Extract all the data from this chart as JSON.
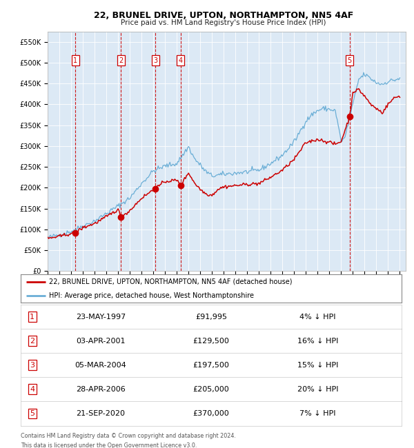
{
  "title": "22, BRUNEL DRIVE, UPTON, NORTHAMPTON, NN5 4AF",
  "subtitle": "Price paid vs. HM Land Registry's House Price Index (HPI)",
  "legend_line1": "22, BRUNEL DRIVE, UPTON, NORTHAMPTON, NN5 4AF (detached house)",
  "legend_line2": "HPI: Average price, detached house, West Northamptonshire",
  "footer1": "Contains HM Land Registry data © Crown copyright and database right 2024.",
  "footer2": "This data is licensed under the Open Government Licence v3.0.",
  "transactions": [
    {
      "num": 1,
      "date": "23-MAY-1997",
      "year": 1997.38,
      "price": 91995,
      "pct": "4%",
      "dir": "↓"
    },
    {
      "num": 2,
      "date": "03-APR-2001",
      "year": 2001.25,
      "price": 129500,
      "pct": "16%",
      "dir": "↓"
    },
    {
      "num": 3,
      "date": "05-MAR-2004",
      "year": 2004.17,
      "price": 197500,
      "pct": "15%",
      "dir": "↓"
    },
    {
      "num": 4,
      "date": "28-APR-2006",
      "year": 2006.33,
      "price": 205000,
      "pct": "20%",
      "dir": "↓"
    },
    {
      "num": 5,
      "date": "21-SEP-2020",
      "year": 2020.72,
      "price": 370000,
      "pct": "7%",
      "dir": "↓"
    }
  ],
  "hpi_color": "#6aaed6",
  "price_color": "#cc0000",
  "dot_color": "#cc0000",
  "vline_color": "#cc0000",
  "box_color": "#cc0000",
  "bg_chart": "#dce9f5",
  "bg_figure": "#ffffff",
  "ylim": [
    0,
    575000
  ],
  "yticks": [
    0,
    50000,
    100000,
    150000,
    200000,
    250000,
    300000,
    350000,
    400000,
    450000,
    500000,
    550000
  ],
  "xlim_start": 1995.0,
  "xlim_end": 2025.5,
  "xticks": [
    1995,
    1996,
    1997,
    1998,
    1999,
    2000,
    2001,
    2002,
    2003,
    2004,
    2005,
    2006,
    2007,
    2008,
    2009,
    2010,
    2011,
    2012,
    2013,
    2014,
    2015,
    2016,
    2017,
    2018,
    2019,
    2020,
    2021,
    2022,
    2023,
    2024,
    2025
  ]
}
